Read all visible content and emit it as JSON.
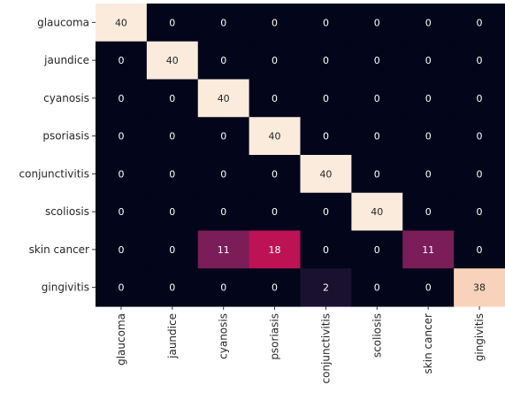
{
  "chart_data": {
    "type": "heatmap",
    "title": "",
    "xlabel": "",
    "ylabel": "",
    "row_labels": [
      "glaucoma",
      "jaundice",
      "cyanosis",
      "psoriasis",
      "conjunctivitis",
      "scoliosis",
      "skin cancer",
      "gingivitis"
    ],
    "col_labels": [
      "glaucoma",
      "jaundice",
      "cyanosis",
      "psoriasis",
      "conjunctivitis",
      "scoliosis",
      "skin cancer",
      "gingivitis"
    ],
    "values": [
      [
        40,
        0,
        0,
        0,
        0,
        0,
        0,
        0
      ],
      [
        0,
        40,
        0,
        0,
        0,
        0,
        0,
        0
      ],
      [
        0,
        0,
        40,
        0,
        0,
        0,
        0,
        0
      ],
      [
        0,
        0,
        0,
        40,
        0,
        0,
        0,
        0
      ],
      [
        0,
        0,
        0,
        0,
        40,
        0,
        0,
        0
      ],
      [
        0,
        0,
        0,
        0,
        0,
        40,
        0,
        0
      ],
      [
        0,
        0,
        11,
        18,
        0,
        0,
        11,
        0
      ],
      [
        0,
        0,
        0,
        0,
        2,
        0,
        0,
        38
      ]
    ],
    "vmin": 0,
    "vmax": 40,
    "colormap": "rocket",
    "annotations": true,
    "colorbar": false
  }
}
